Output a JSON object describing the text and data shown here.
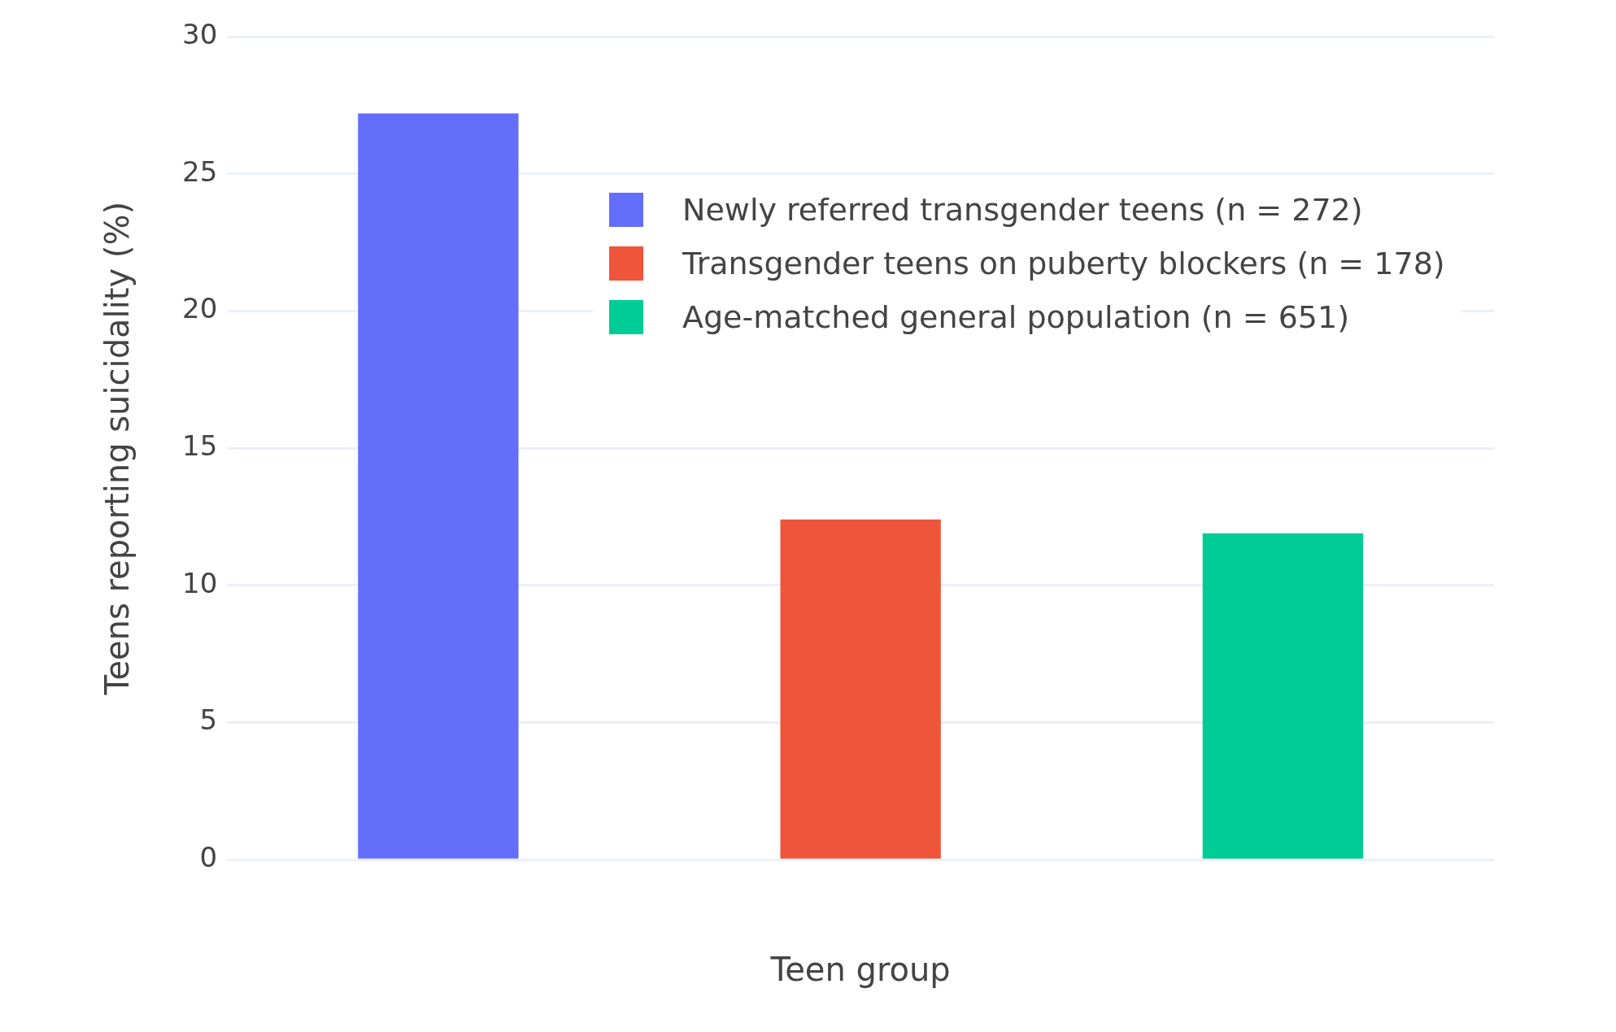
{
  "chart_data": {
    "type": "bar",
    "xlabel": "Teen group",
    "ylabel": "Teens reporting suicidality (%)",
    "categories": [
      null,
      null,
      null
    ],
    "series": [
      {
        "name": "Newly referred transgender teens (n = 272)",
        "color": "#636efa",
        "values": [
          27.2,
          null,
          null
        ]
      },
      {
        "name": "Transgender teens on puberty blockers (n = 178)",
        "color": "#ef553b",
        "values": [
          null,
          12.4,
          null
        ]
      },
      {
        "name": "Age-matched general population (n = 651)",
        "color": "#00cc96",
        "values": [
          null,
          null,
          11.9
        ]
      }
    ],
    "ylim": [
      0,
      30
    ],
    "yticks": [
      0,
      5,
      10,
      15,
      20,
      25,
      30
    ],
    "grid": "y",
    "legend": "top right"
  }
}
